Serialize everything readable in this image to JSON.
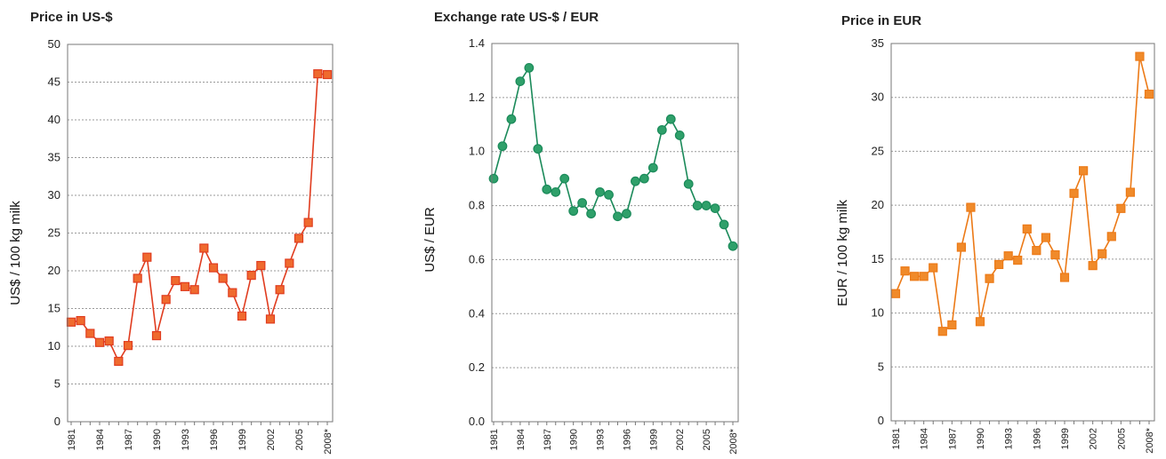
{
  "chart_data": [
    {
      "type": "line",
      "title": "Price in US-$",
      "ylabel": "US$ / 100 kg milk",
      "ylim": [
        0,
        50
      ],
      "yticks": [
        "0",
        "5",
        "10",
        "15",
        "20",
        "25",
        "30",
        "35",
        "40",
        "45",
        "50"
      ],
      "xtick_labels": [
        "1981",
        "1984",
        "1987",
        "1990",
        "1993",
        "1996",
        "1999",
        "2002",
        "2005",
        "2008*"
      ],
      "x": [
        1981,
        1982,
        1983,
        1984,
        1985,
        1986,
        1987,
        1988,
        1989,
        1990,
        1991,
        1992,
        1993,
        1994,
        1995,
        1996,
        1997,
        1998,
        1999,
        2000,
        2001,
        2002,
        2003,
        2004,
        2005,
        2006,
        2007,
        2008
      ],
      "series": [
        {
          "values": [
            13.2,
            13.4,
            11.7,
            10.5,
            10.7,
            8.0,
            10.1,
            19.0,
            21.8,
            11.4,
            16.2,
            18.7,
            17.9,
            17.5,
            23.0,
            20.4,
            19.0,
            17.1,
            14.0,
            19.4,
            20.7,
            13.6,
            17.5,
            21.0,
            24.3,
            26.4,
            46.1,
            46.0
          ],
          "color": "#e03c1f",
          "marker": "square",
          "marker_fill": "#ef6a2e"
        }
      ],
      "grid": true
    },
    {
      "type": "line",
      "title": "Exchange rate US-$ / EUR",
      "ylabel": "US$ / EUR",
      "ylim": [
        0,
        1.4
      ],
      "yticks": [
        "0.0",
        "0.2",
        "0.4",
        "0.6",
        "0.8",
        "1.0",
        "1.2",
        "1.4"
      ],
      "xtick_labels": [
        "1981",
        "1984",
        "1987",
        "1990",
        "1993",
        "1996",
        "1999",
        "2002",
        "2005",
        "2008*"
      ],
      "x": [
        1981,
        1982,
        1983,
        1984,
        1985,
        1986,
        1987,
        1988,
        1989,
        1990,
        1991,
        1992,
        1993,
        1994,
        1995,
        1996,
        1997,
        1998,
        1999,
        2000,
        2001,
        2002,
        2003,
        2004,
        2005,
        2006,
        2007,
        2008
      ],
      "series": [
        {
          "values": [
            0.9,
            1.02,
            1.12,
            1.26,
            1.31,
            1.01,
            0.86,
            0.85,
            0.9,
            0.78,
            0.81,
            0.77,
            0.85,
            0.84,
            0.76,
            0.77,
            0.89,
            0.9,
            0.94,
            1.08,
            1.12,
            1.06,
            0.88,
            0.8,
            0.8,
            0.79,
            0.73,
            0.65
          ],
          "color": "#1b8a5a",
          "marker": "circle",
          "marker_fill": "#2fa06a"
        }
      ],
      "grid": true
    },
    {
      "type": "line",
      "title": "Price in EUR",
      "ylabel": "EUR / 100 kg milk",
      "ylim": [
        0,
        35
      ],
      "yticks": [
        "0",
        "5",
        "10",
        "15",
        "20",
        "25",
        "30",
        "35"
      ],
      "xtick_labels": [
        "1981",
        "1984",
        "1987",
        "1990",
        "1993",
        "1996",
        "1999",
        "2002",
        "2005",
        "2008*"
      ],
      "x": [
        1981,
        1982,
        1983,
        1984,
        1985,
        1986,
        1987,
        1988,
        1989,
        1990,
        1991,
        1992,
        1993,
        1994,
        1995,
        1996,
        1997,
        1998,
        1999,
        2000,
        2001,
        2002,
        2003,
        2004,
        2005,
        2006,
        2007,
        2008
      ],
      "series": [
        {
          "values": [
            11.8,
            13.9,
            13.4,
            13.4,
            14.2,
            8.3,
            8.9,
            16.1,
            19.8,
            9.2,
            13.2,
            14.5,
            15.3,
            14.9,
            17.8,
            15.8,
            17.0,
            15.4,
            13.3,
            21.1,
            23.2,
            14.4,
            15.5,
            17.1,
            19.7,
            21.2,
            33.8,
            30.3
          ],
          "color": "#ec7a17",
          "marker": "square",
          "marker_fill": "#f08a2a"
        }
      ],
      "grid": true
    }
  ]
}
